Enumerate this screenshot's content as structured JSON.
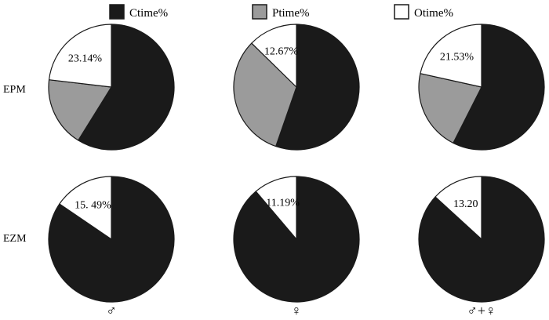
{
  "colors": {
    "ctime": "#1a1a1a",
    "ptime": "#9b9b9b",
    "otime": "#ffffff",
    "stroke": "#1a1a1a"
  },
  "legend": [
    {
      "key": "ctime",
      "label": "Ctime%"
    },
    {
      "key": "ptime",
      "label": "Ptime%"
    },
    {
      "key": "otime",
      "label": "Otime%"
    }
  ],
  "rows": [
    "EPM",
    "EZM"
  ],
  "columns": [
    "♂",
    "♀",
    "♂+♀"
  ],
  "chart_data": [
    {
      "type": "pie",
      "row": "EPM",
      "column": "♂",
      "slices": [
        {
          "name": "Ctime%",
          "value": 58.86
        },
        {
          "name": "Ptime%",
          "value": 18.0
        },
        {
          "name": "Otime%",
          "value": 23.14
        }
      ],
      "data_label": "23.14%"
    },
    {
      "type": "pie",
      "row": "EPM",
      "column": "♀",
      "slices": [
        {
          "name": "Ctime%",
          "value": 55.33
        },
        {
          "name": "Ptime%",
          "value": 32.0
        },
        {
          "name": "Otime%",
          "value": 12.67
        }
      ],
      "data_label": "12.67%"
    },
    {
      "type": "pie",
      "row": "EPM",
      "column": "♂+♀",
      "slices": [
        {
          "name": "Ctime%",
          "value": 57.47
        },
        {
          "name": "Ptime%",
          "value": 21.0
        },
        {
          "name": "Otime%",
          "value": 21.53
        }
      ],
      "data_label": "21.53%"
    },
    {
      "type": "pie",
      "row": "EZM",
      "column": "♂",
      "slices": [
        {
          "name": "Ctime%",
          "value": 84.51
        },
        {
          "name": "Ptime%",
          "value": 0
        },
        {
          "name": "Otime%",
          "value": 15.49
        }
      ],
      "data_label": "15. 49%"
    },
    {
      "type": "pie",
      "row": "EZM",
      "column": "♀",
      "slices": [
        {
          "name": "Ctime%",
          "value": 88.81
        },
        {
          "name": "Ptime%",
          "value": 0
        },
        {
          "name": "Otime%",
          "value": 11.19
        }
      ],
      "data_label": "11.19%"
    },
    {
      "type": "pie",
      "row": "EZM",
      "column": "♂+♀",
      "slices": [
        {
          "name": "Ctime%",
          "value": 86.8
        },
        {
          "name": "Ptime%",
          "value": 0
        },
        {
          "name": "Otime%",
          "value": 13.2
        }
      ],
      "data_label": "13.20"
    }
  ]
}
